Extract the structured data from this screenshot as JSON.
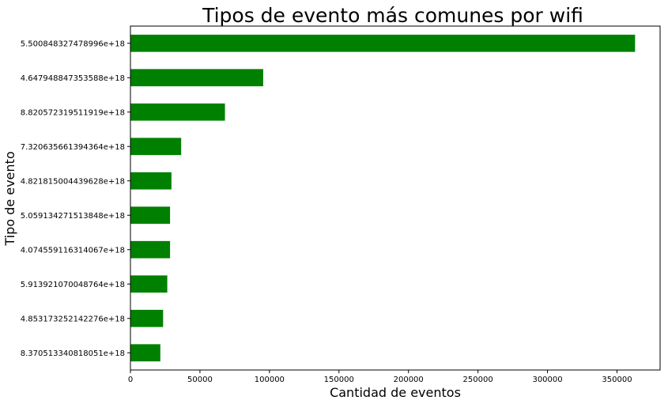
{
  "chart_data": {
    "type": "bar",
    "orientation": "horizontal",
    "title": "Tipos de evento más comunes por wifi",
    "xlabel": "Cantidad de eventos",
    "ylabel": "Tipo de evento",
    "categories": [
      "5.500848327478996e+18",
      "4.647948847353588e+18",
      "8.820572319511919e+18",
      "7.320635661394364e+18",
      "4.821815004439628e+18",
      "5.059134271513848e+18",
      "4.074559116314067e+18",
      "5.913921070048764e+18",
      "4.853173252142276e+18",
      "8.370513340818051e+18"
    ],
    "values": [
      363000,
      95500,
      68000,
      36500,
      29500,
      28500,
      28500,
      26500,
      23500,
      21500
    ],
    "xticks": [
      0,
      50000,
      100000,
      150000,
      200000,
      250000,
      300000,
      350000
    ],
    "xlim": [
      0,
      381000
    ],
    "bar_color": "#008000",
    "grid": false,
    "legend": "none"
  }
}
